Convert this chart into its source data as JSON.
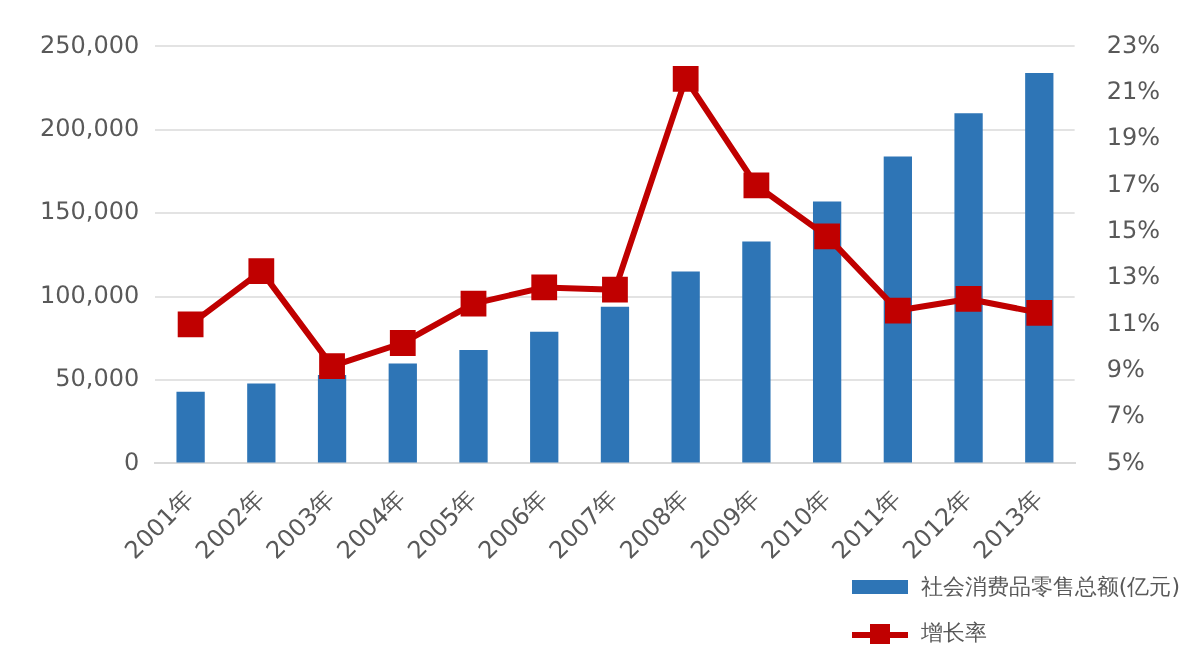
{
  "chart_data": {
    "type": "bar",
    "categories": [
      "2001年",
      "2002年",
      "2003年",
      "2004年",
      "2005年",
      "2006年",
      "2007年",
      "2008年",
      "2009年",
      "2010年",
      "2011年",
      "2012年",
      "2013年"
    ],
    "series": [
      {
        "name": "社会消费品零售总额(亿元)",
        "color": "#2e75b6",
        "values": [
          43000,
          48000,
          53000,
          60000,
          68000,
          79000,
          94000,
          115000,
          133000,
          157000,
          184000,
          210000,
          234000
        ]
      },
      {
        "name": "增长率",
        "type": "line",
        "axis": "y2",
        "color": "#c00000",
        "values": [
          11.0,
          13.3,
          9.2,
          10.2,
          11.9,
          12.6,
          12.5,
          21.6,
          17.0,
          14.8,
          11.6,
          12.1,
          11.5
        ]
      }
    ],
    "ylim": [
      0,
      250000
    ],
    "yticks": [
      {
        "value": 0,
        "label": "0"
      },
      {
        "value": 50000,
        "label": "50,000"
      },
      {
        "value": 100000,
        "label": "100,000"
      },
      {
        "value": 150000,
        "label": "150,000"
      },
      {
        "value": 200000,
        "label": "200,000"
      },
      {
        "value": 250000,
        "label": "250,000"
      }
    ],
    "y2lim": [
      5,
      23
    ],
    "y2ticks": [
      {
        "value": 5,
        "label": "5%"
      },
      {
        "value": 7,
        "label": "7%"
      },
      {
        "value": 9,
        "label": "9%"
      },
      {
        "value": 11,
        "label": "11%"
      },
      {
        "value": 13,
        "label": "13%"
      },
      {
        "value": 15,
        "label": "15%"
      },
      {
        "value": 17,
        "label": "17%"
      },
      {
        "value": 19,
        "label": "19%"
      },
      {
        "value": 21,
        "label": "21%"
      },
      {
        "value": 23,
        "label": "23%"
      }
    ],
    "grid": "y",
    "legend": "bottom right",
    "marker": "square",
    "line_style": "solid"
  }
}
